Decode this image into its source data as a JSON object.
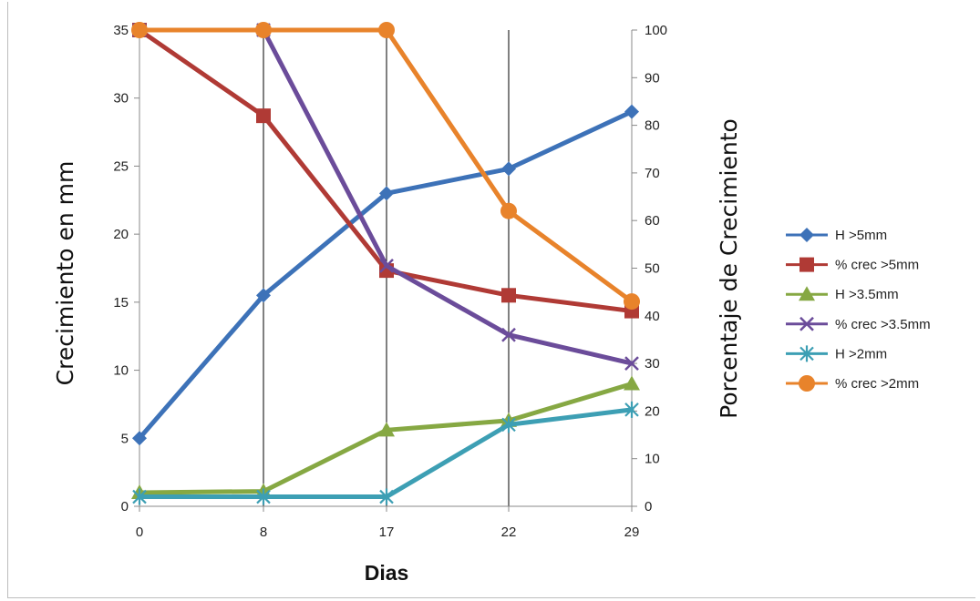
{
  "chart_data": {
    "type": "line",
    "categories": [
      "0",
      "8",
      "17",
      "22",
      "29"
    ],
    "xlabel": "Dias",
    "ylabel_left": "Crecimiento en mm",
    "ylabel_right": "Porcentaje de Crecimiento",
    "ylim_left": [
      0,
      35
    ],
    "yticks_left": [
      0,
      5,
      10,
      15,
      20,
      25,
      30,
      35
    ],
    "ylim_right": [
      0,
      100
    ],
    "yticks_right": [
      0,
      10,
      20,
      30,
      40,
      50,
      60,
      70,
      80,
      90,
      100
    ],
    "grid": "vertical lines at categories",
    "legend_position": "right",
    "series": [
      {
        "name": "H >5mm",
        "axis": "left",
        "color": "#3d72b8",
        "marker": "diamond",
        "values": [
          5,
          15.5,
          23,
          24.8,
          29
        ]
      },
      {
        "name": "% crec >5mm",
        "axis": "right",
        "color": "#b03a35",
        "marker": "square",
        "values": [
          100,
          82,
          49.5,
          44.3,
          41
        ]
      },
      {
        "name": "H >3.5mm",
        "axis": "left",
        "color": "#86a843",
        "marker": "triangle",
        "values": [
          1,
          1.1,
          5.6,
          6.3,
          9
        ]
      },
      {
        "name": "% crec >3.5mm",
        "axis": "right",
        "color": "#6b4c9a",
        "marker": "x",
        "values": [
          100,
          100,
          50.5,
          36,
          30
        ]
      },
      {
        "name": "H >2mm",
        "axis": "left",
        "color": "#3d9fb4",
        "marker": "star",
        "values": [
          0.7,
          0.7,
          0.7,
          6,
          7.1
        ]
      },
      {
        "name": "% crec >2mm",
        "axis": "right",
        "color": "#e8832b",
        "marker": "circle",
        "values": [
          100,
          100,
          100,
          62,
          43
        ]
      }
    ]
  }
}
